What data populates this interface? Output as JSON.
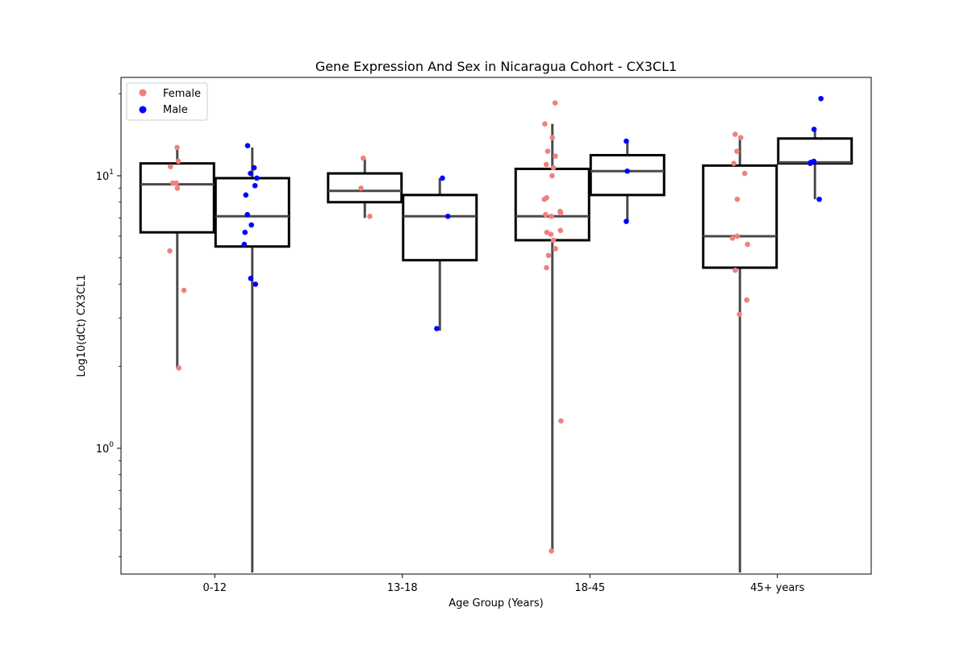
{
  "chart_data": {
    "type": "box",
    "title": "Gene Expression And Sex in Nicaragua Cohort - CX3CL1",
    "xlabel": "Age Group (Years)",
    "ylabel": "Log10(dCt) CX3CL1",
    "yscale": "log",
    "ylim": [
      0.35,
      24
    ],
    "y_tick_labels": [
      "10^0",
      "10^1"
    ],
    "categories": [
      "0-12",
      "13-18",
      "18-45",
      "45+ years"
    ],
    "legend": {
      "placement": "top-left",
      "entries": [
        "Female",
        "Male"
      ]
    },
    "series": [
      {
        "name": "Female",
        "color": "#f08080",
        "boxes": [
          {
            "category": "0-12",
            "whisker_low": 1.97,
            "q1": 6.2,
            "median": 9.3,
            "q3": 11.1,
            "whisker_high": 12.6
          },
          {
            "category": "13-18",
            "whisker_low": 7.0,
            "q1": 8.0,
            "median": 8.8,
            "q3": 10.2,
            "whisker_high": 11.5
          },
          {
            "category": "18-45",
            "whisker_low": 0.42,
            "q1": 5.8,
            "median": 7.1,
            "q3": 10.6,
            "whisker_high": 15.5
          },
          {
            "category": "45+ years",
            "whisker_low": 0.35,
            "q1": 4.6,
            "median": 6.0,
            "q3": 10.9,
            "whisker_high": 14.0
          }
        ],
        "points": [
          {
            "category": "0-12",
            "values": [
              12.7,
              11.3,
              10.8,
              9.4,
              9.4,
              9.0,
              5.3,
              3.8,
              1.97
            ]
          },
          {
            "category": "13-18",
            "values": [
              11.6,
              9.0,
              7.1
            ]
          },
          {
            "category": "18-45",
            "values": [
              18.5,
              15.5,
              13.8,
              12.3,
              11.8,
              11.0,
              10.7,
              10.0,
              8.3,
              8.2,
              7.4,
              7.3,
              7.2,
              7.1,
              6.3,
              6.2,
              6.1,
              5.8,
              5.4,
              5.1,
              4.6,
              1.26,
              0.42
            ]
          },
          {
            "category": "45+ years",
            "values": [
              14.2,
              13.8,
              12.3,
              11.1,
              10.2,
              8.2,
              6.0,
              5.9,
              5.6,
              4.5,
              3.5,
              3.1
            ]
          }
        ]
      },
      {
        "name": "Male",
        "color": "#0000ff",
        "boxes": [
          {
            "category": "0-12",
            "whisker_low": 0.35,
            "q1": 5.5,
            "median": 7.1,
            "q3": 9.8,
            "whisker_high": 12.7
          },
          {
            "category": "13-18",
            "whisker_low": 2.7,
            "q1": 4.9,
            "median": 7.1,
            "q3": 8.5,
            "whisker_high": 9.8
          },
          {
            "category": "18-45",
            "whisker_low": 6.8,
            "q1": 8.5,
            "median": 10.4,
            "q3": 11.9,
            "whisker_high": 13.4
          },
          {
            "category": "45+ years",
            "whisker_low": 8.2,
            "q1": 11.1,
            "median": 11.2,
            "q3": 13.7,
            "whisker_high": 14.8
          }
        ],
        "points": [
          {
            "category": "0-12",
            "values": [
              12.9,
              10.7,
              10.2,
              9.8,
              9.2,
              8.5,
              7.2,
              6.6,
              6.2,
              5.6,
              4.2,
              4.0
            ]
          },
          {
            "category": "13-18",
            "values": [
              9.8,
              7.1,
              2.75
            ]
          },
          {
            "category": "18-45",
            "values": [
              13.4,
              10.4,
              6.8
            ]
          },
          {
            "category": "45+ years",
            "values": [
              19.2,
              14.8,
              11.3,
              11.2,
              11.1,
              8.2
            ]
          }
        ]
      }
    ]
  }
}
